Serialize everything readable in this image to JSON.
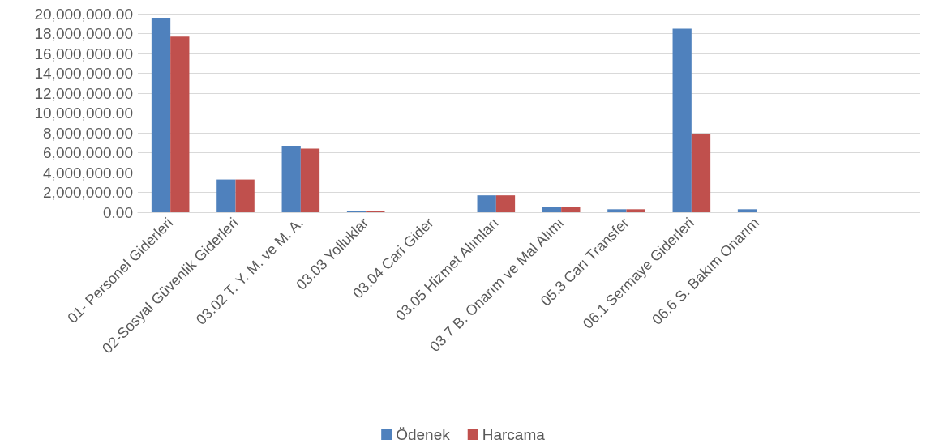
{
  "chart_data": {
    "type": "bar",
    "categories": [
      "01- Personel Giderleri",
      "02-Sosyal Güvenlik Giderleri",
      "03.02 T. Y. M. ve M. A.",
      "03.03 Yolluklar",
      "03.04 Cari Gider",
      "03.05 Hizmet Alımları",
      "03.7 B. Onarım ve Mal Alımı",
      "05.3 Carı Transfer",
      "06.1 Sermaye Giderleri",
      "06.6 S. Bakım Onarım",
      null,
      null
    ],
    "series": [
      {
        "name": "Ödenek",
        "color": "#4f81bd",
        "values": [
          19600000,
          3300000,
          6700000,
          100000,
          0,
          1700000,
          500000,
          300000,
          18500000,
          300000,
          null,
          null
        ]
      },
      {
        "name": "Harcama",
        "color": "#c0504d",
        "values": [
          17700000,
          3300000,
          6400000,
          100000,
          0,
          1700000,
          500000,
          300000,
          7900000,
          0,
          null,
          null
        ]
      }
    ],
    "ylim": [
      0,
      20000000
    ],
    "yticks": [
      {
        "value": 0,
        "label": "0.00"
      },
      {
        "value": 2000000,
        "label": "2,000,000.00"
      },
      {
        "value": 4000000,
        "label": "4,000,000.00"
      },
      {
        "value": 6000000,
        "label": "6,000,000.00"
      },
      {
        "value": 8000000,
        "label": "8,000,000.00"
      },
      {
        "value": 10000000,
        "label": "10,000,000.00"
      },
      {
        "value": 12000000,
        "label": "12,000,000.00"
      },
      {
        "value": 14000000,
        "label": "14,000,000.00"
      },
      {
        "value": 16000000,
        "label": "16,000,000.00"
      },
      {
        "value": 18000000,
        "label": "18,000,000.00"
      },
      {
        "value": 20000000,
        "label": "20,000,000.00"
      }
    ],
    "grid": "y",
    "legend": "bottom"
  }
}
